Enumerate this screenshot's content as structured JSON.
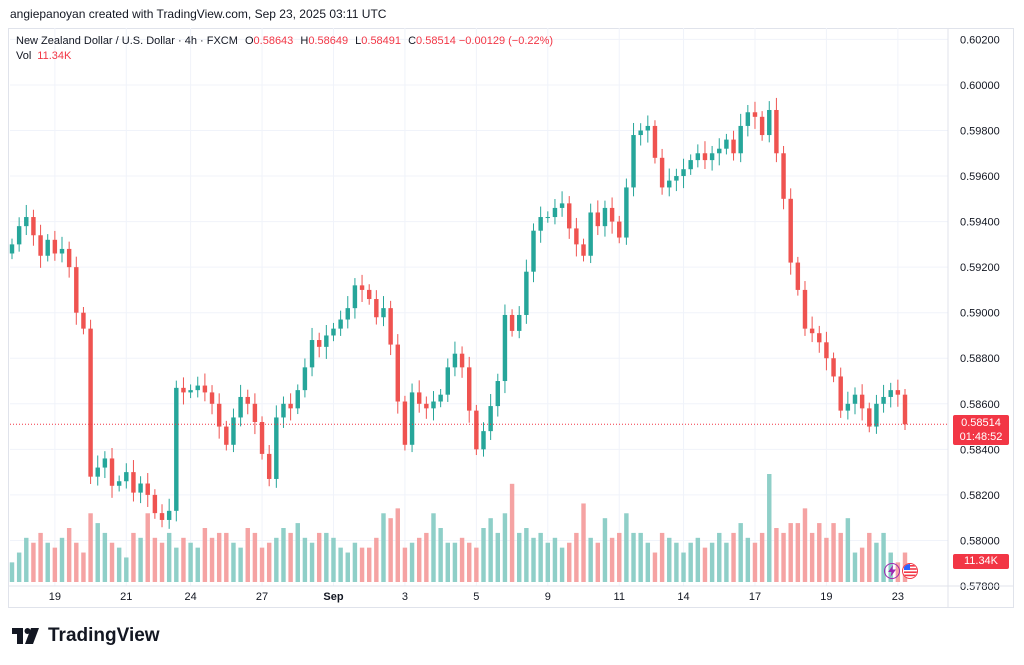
{
  "credit": "angiepanoyan created with TradingView.com, Sep 23, 2025 03:11 UTC",
  "legend": {
    "symbol": "New Zealand Dollar / U.S. Dollar · 4h · FXCM",
    "o_label": "O",
    "o_value": "0.58643",
    "h_label": "H",
    "h_value": "0.58649",
    "l_label": "L",
    "l_value": "0.58491",
    "c_label": "C",
    "c_value": "0.58514",
    "change": "−0.00129 (−0.22%)",
    "vol_label": "Vol",
    "vol_value": "11.34K"
  },
  "price_tag": {
    "price": "0.58514",
    "countdown": "01:48:52"
  },
  "vol_tag": "11.34K",
  "brand": {
    "name": "TradingView"
  },
  "colors": {
    "up": "#26a69a",
    "down": "#ef5350",
    "vol_up": "#8fcfc8",
    "vol_down": "#f5a3a3",
    "grid": "#f0f3fa",
    "text": "#131722",
    "accent": "#f23645"
  },
  "events": [
    {
      "icon": "lightning-icon",
      "index": 125
    },
    {
      "icon": "us-flag-icon",
      "index": 128
    }
  ],
  "chart_data": {
    "type": "candlestick",
    "symbol": "NZDUSD",
    "timeframe": "4h",
    "ylim": [
      0.578,
      0.6025
    ],
    "y_ticks": [
      "0.60200",
      "0.60000",
      "0.59800",
      "0.59600",
      "0.59400",
      "0.59200",
      "0.59000",
      "0.58800",
      "0.58600",
      "0.58400",
      "0.58200",
      "0.58000",
      "0.57800"
    ],
    "x_labels": [
      {
        "label": "19",
        "index": 6
      },
      {
        "label": "21",
        "index": 16
      },
      {
        "label": "24",
        "index": 25
      },
      {
        "label": "27",
        "index": 35
      },
      {
        "label": "Sep",
        "index": 45
      },
      {
        "label": "3",
        "index": 55
      },
      {
        "label": "5",
        "index": 65
      },
      {
        "label": "9",
        "index": 75
      },
      {
        "label": "11",
        "index": 85
      },
      {
        "label": "14",
        "index": 94
      },
      {
        "label": "17",
        "index": 104
      },
      {
        "label": "19",
        "index": 114
      },
      {
        "label": "23",
        "index": 124
      }
    ],
    "series": [
      {
        "name": "close",
        "values": [
          0.593,
          0.5938,
          0.5942,
          0.5934,
          0.5925,
          0.5932,
          0.5926,
          0.5928,
          0.592,
          0.59,
          0.5893,
          0.5828,
          0.5832,
          0.5836,
          0.5824,
          0.5826,
          0.583,
          0.5821,
          0.5825,
          0.582,
          0.5812,
          0.5809,
          0.5813,
          0.5867,
          0.5865,
          0.5866,
          0.5868,
          0.5865,
          0.586,
          0.585,
          0.5842,
          0.5854,
          0.5863,
          0.586,
          0.5852,
          0.5838,
          0.5827,
          0.5854,
          0.586,
          0.5858,
          0.5866,
          0.5876,
          0.5888,
          0.5885,
          0.589,
          0.5893,
          0.5897,
          0.5902,
          0.5912,
          0.591,
          0.5906,
          0.5898,
          0.5902,
          0.5886,
          0.5861,
          0.5842,
          0.5865,
          0.586,
          0.5858,
          0.5861,
          0.5864,
          0.5876,
          0.5882,
          0.5876,
          0.5857,
          0.584,
          0.5848,
          0.5859,
          0.587,
          0.5899,
          0.5892,
          0.5899,
          0.5918,
          0.5936,
          0.5942,
          0.5942,
          0.5946,
          0.5948,
          0.5937,
          0.593,
          0.5925,
          0.5944,
          0.5938,
          0.5946,
          0.594,
          0.5933,
          0.5955,
          0.5978,
          0.598,
          0.5982,
          0.5968,
          0.5955,
          0.5958,
          0.596,
          0.5963,
          0.5967,
          0.597,
          0.5967,
          0.597,
          0.5972,
          0.5976,
          0.597,
          0.5982,
          0.5988,
          0.5986,
          0.5978,
          0.5989,
          0.597,
          0.595,
          0.5922,
          0.591,
          0.5893,
          0.5891,
          0.5887,
          0.588,
          0.5872,
          0.5857,
          0.586,
          0.5864,
          0.5858,
          0.585,
          0.586,
          0.5863,
          0.5866,
          0.5864,
          0.5851
        ]
      },
      {
        "name": "volume",
        "values": [
          0.4,
          0.6,
          0.9,
          0.8,
          1.0,
          0.8,
          0.7,
          0.9,
          1.1,
          0.8,
          0.6,
          1.4,
          1.2,
          1.0,
          0.8,
          0.7,
          0.5,
          1.0,
          0.9,
          1.4,
          0.9,
          0.8,
          1.0,
          0.7,
          0.9,
          0.8,
          0.7,
          1.1,
          0.9,
          1.0,
          1.0,
          0.8,
          0.7,
          1.1,
          1.0,
          0.7,
          0.8,
          0.9,
          1.1,
          1.0,
          1.2,
          0.9,
          0.8,
          1.0,
          1.0,
          0.9,
          0.7,
          0.6,
          0.8,
          0.7,
          0.7,
          0.9,
          1.4,
          1.3,
          1.5,
          0.7,
          0.8,
          0.9,
          1.0,
          1.4,
          1.1,
          0.8,
          0.8,
          0.9,
          0.8,
          0.7,
          1.1,
          1.3,
          1.0,
          1.4,
          2.0,
          1.0,
          1.1,
          0.9,
          1.0,
          0.8,
          0.9,
          0.7,
          0.8,
          1.0,
          1.6,
          0.9,
          0.8,
          1.3,
          0.9,
          1.0,
          1.4,
          1.0,
          1.0,
          0.8,
          0.6,
          1.0,
          0.9,
          0.8,
          0.6,
          0.8,
          0.9,
          0.7,
          0.8,
          1.0,
          0.8,
          1.0,
          1.2,
          0.9,
          0.8,
          1.0,
          2.2,
          1.1,
          1.0,
          1.2,
          1.2,
          1.5,
          1.0,
          1.2,
          0.9,
          1.2,
          1.0,
          1.3,
          0.6,
          0.7,
          1.0,
          0.8,
          1.0,
          0.6,
          0.4,
          0.6
        ]
      }
    ]
  }
}
